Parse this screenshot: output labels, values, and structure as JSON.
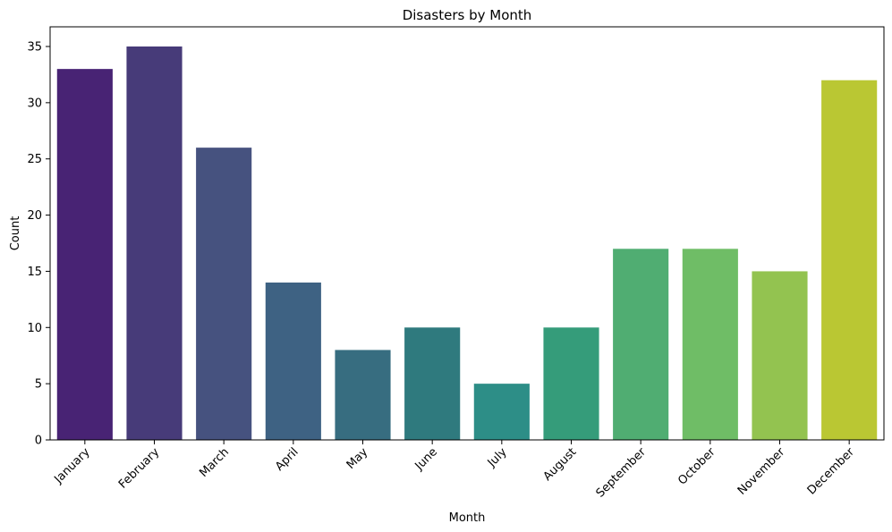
{
  "chart_data": {
    "type": "bar",
    "title": "Disasters by Month",
    "xlabel": "Month",
    "ylabel": "Count",
    "categories": [
      "January",
      "February",
      "March",
      "April",
      "May",
      "June",
      "July",
      "August",
      "September",
      "October",
      "November",
      "December"
    ],
    "values": [
      33,
      35,
      26,
      14,
      8,
      10,
      5,
      10,
      17,
      17,
      15,
      32
    ],
    "ylim": [
      0,
      36.75
    ],
    "yticks": [
      0,
      5,
      10,
      15,
      20,
      25,
      30,
      35
    ],
    "colors": [
      "#482374",
      "#473b79",
      "#46527f",
      "#3e6283",
      "#376d80",
      "#2f7a7e",
      "#2d8e87",
      "#359c7a",
      "#50ad72",
      "#6fbd66",
      "#93c350",
      "#bac733"
    ],
    "grid": false,
    "legend": "none"
  }
}
